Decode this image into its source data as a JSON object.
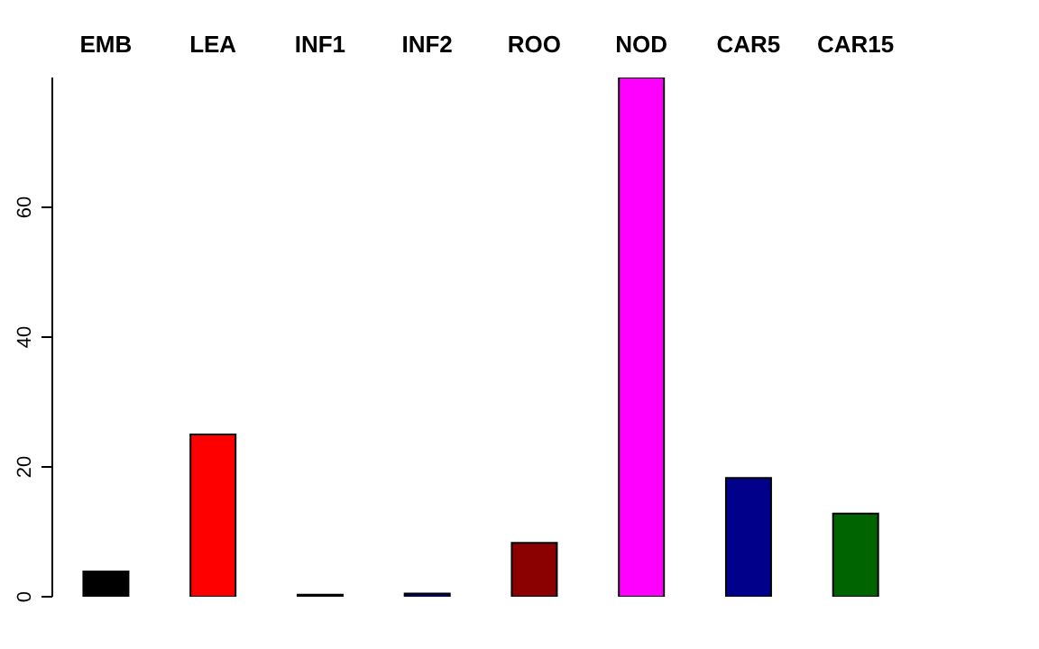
{
  "chart_data": {
    "type": "bar",
    "categories": [
      "EMB",
      "LEA",
      "INF1",
      "INF2",
      "ROO",
      "NOD",
      "CAR5",
      "CAR15"
    ],
    "values": [
      3.9,
      25,
      0.3,
      0.5,
      8.3,
      80,
      18.3,
      12.8
    ],
    "colors": [
      "#000000",
      "#ff0000",
      "#000000",
      "#00008b",
      "#8b0000",
      "#ff00ff",
      "#00008b",
      "#006400"
    ],
    "ylim": [
      0,
      80
    ],
    "yticks": [
      0,
      20,
      40,
      60
    ],
    "grid": false,
    "legend": false
  }
}
